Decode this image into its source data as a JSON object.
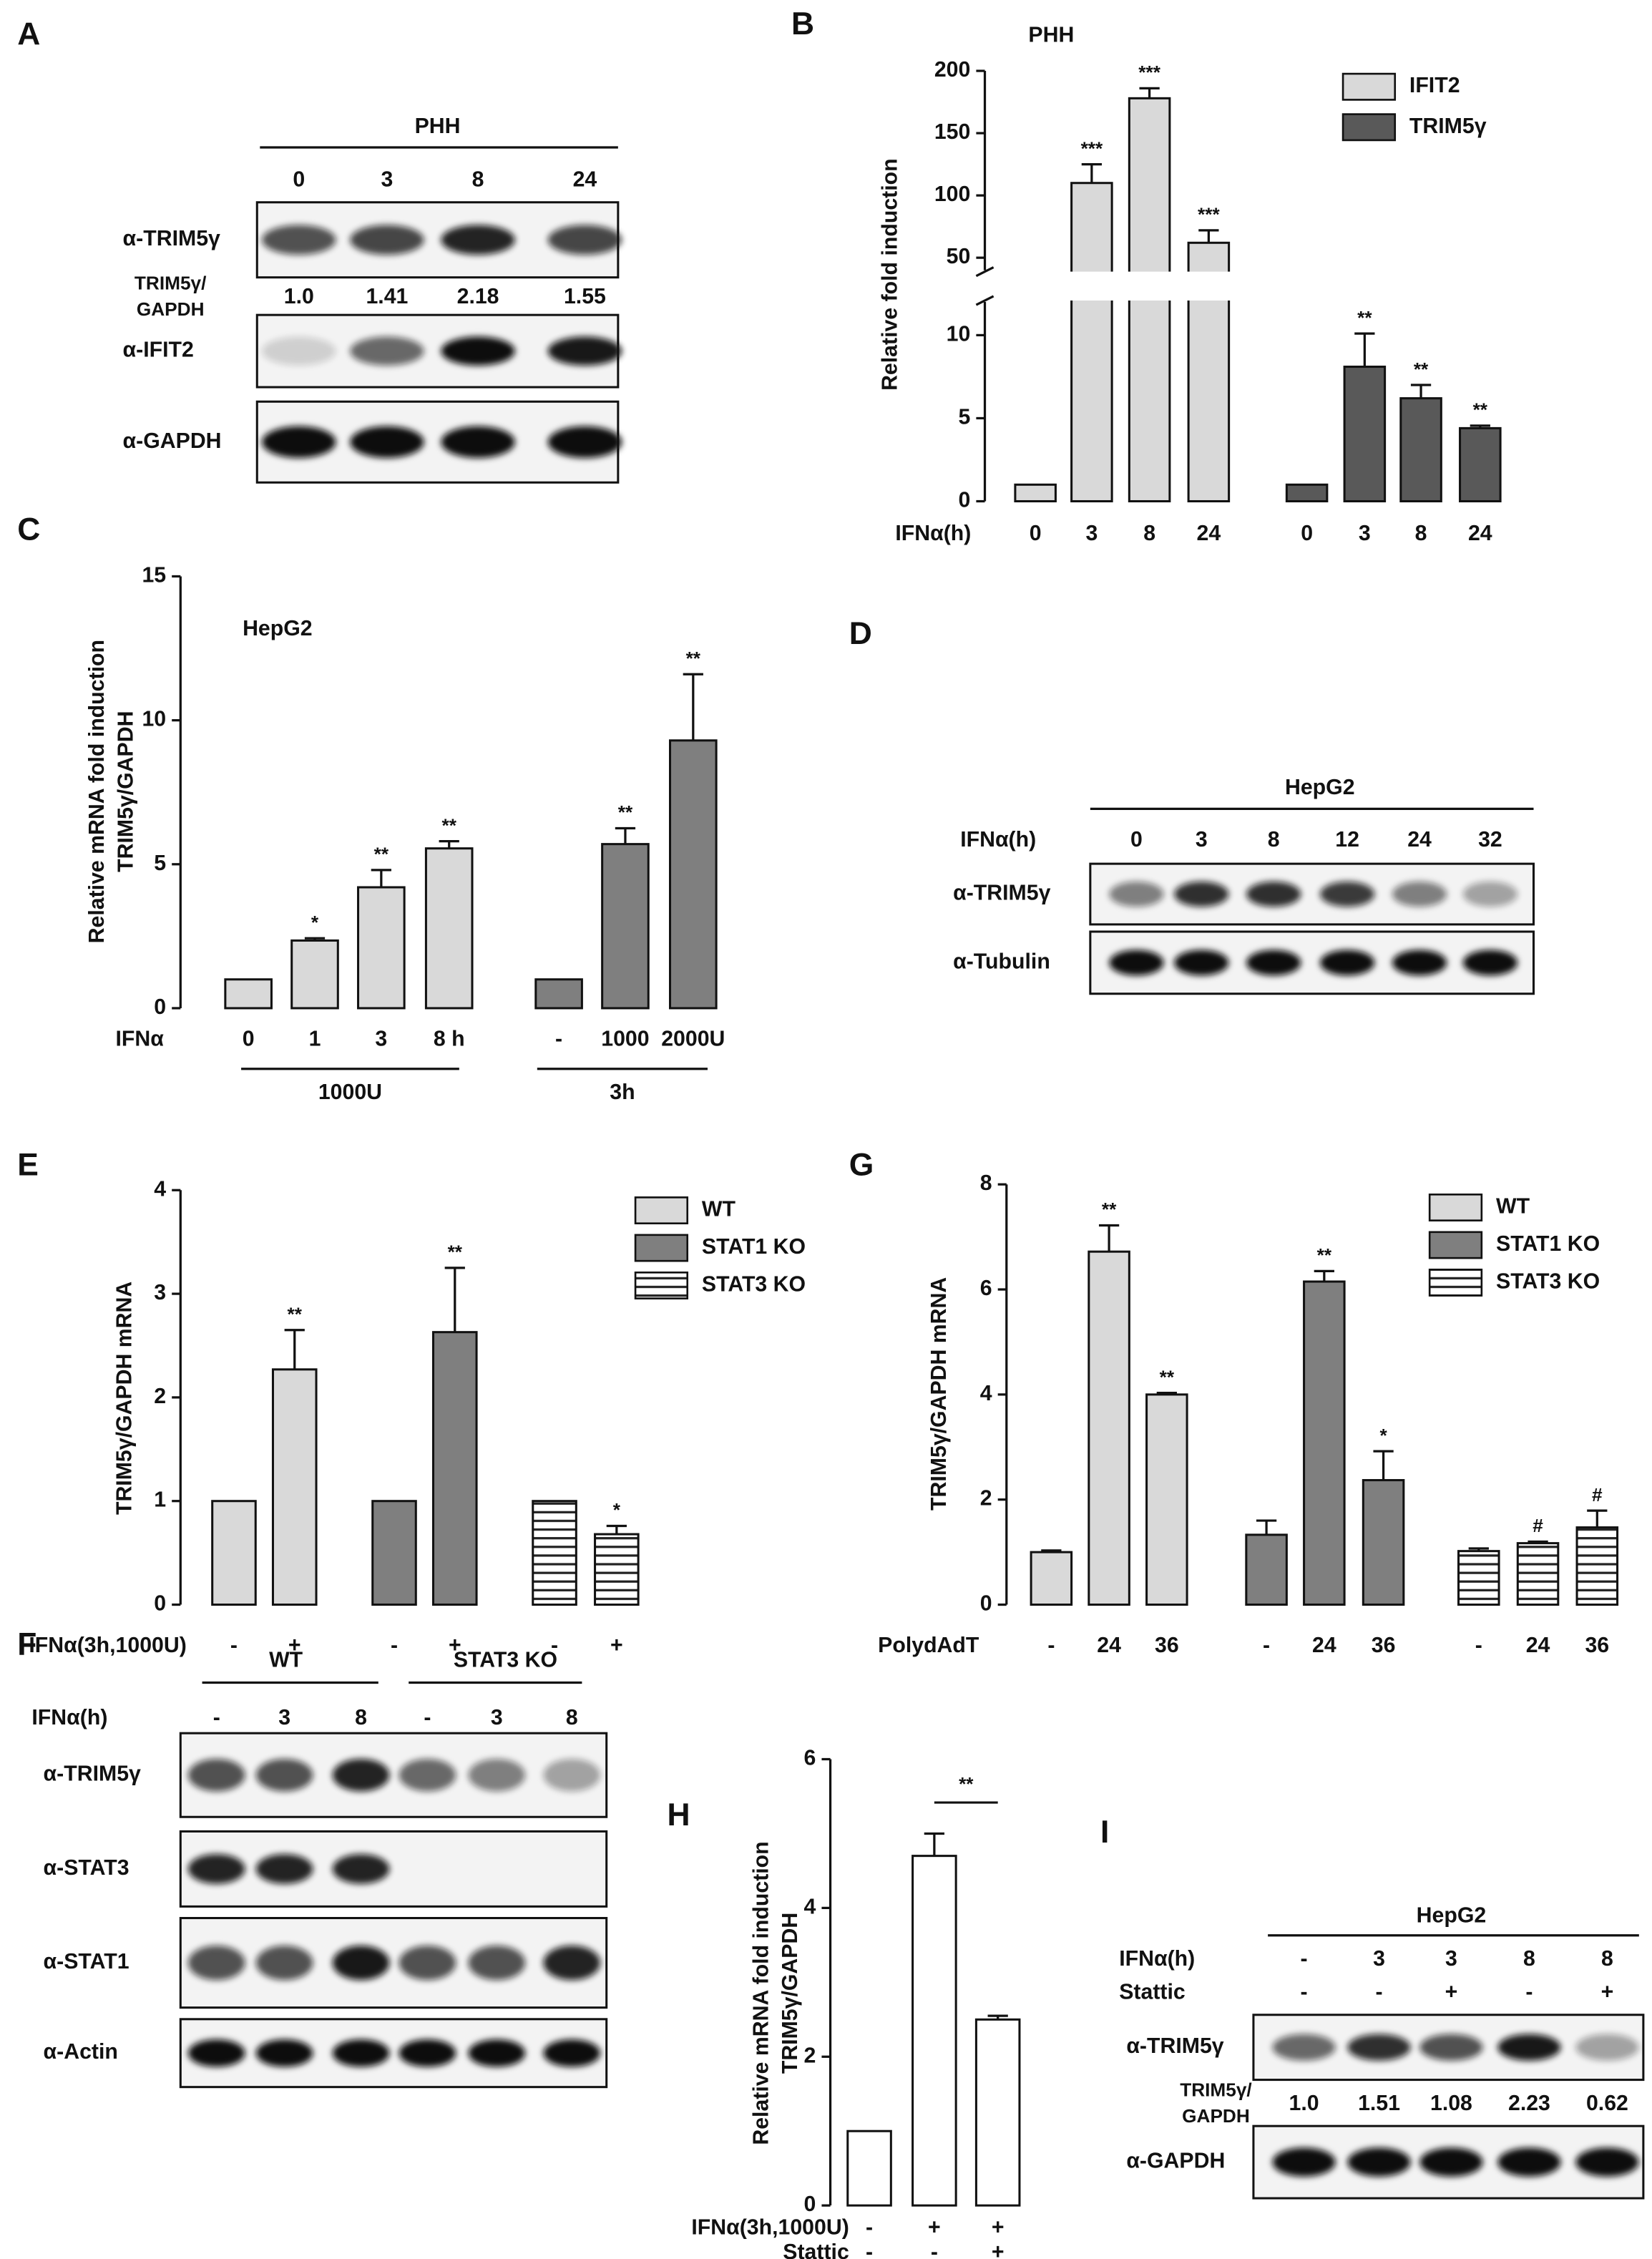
{
  "chart_data": [
    {
      "panel": "B",
      "type": "bar",
      "title": "PHH",
      "y_label": "Relative fold induction",
      "x_label": "IFNα(h)",
      "categories": [
        "0",
        "3",
        "8",
        "24",
        "0",
        "3",
        "8",
        "24"
      ],
      "series": [
        {
          "name": "IFIT2",
          "color": "#d9d9d9",
          "values": [
            1,
            110,
            178,
            62,
            null,
            null,
            null,
            null
          ],
          "errors": [
            null,
            15,
            8,
            10,
            null,
            null,
            null,
            null
          ],
          "stars": [
            null,
            "***",
            "***",
            "***",
            null,
            null,
            null,
            null
          ]
        },
        {
          "name": "TRIM5γ",
          "color": "#595959",
          "values": [
            null,
            null,
            null,
            null,
            1,
            8.1,
            6.2,
            4.4
          ],
          "errors": [
            null,
            null,
            null,
            null,
            null,
            2,
            0.8,
            0.15
          ],
          "stars": [
            null,
            null,
            null,
            null,
            null,
            "**",
            "**",
            "**"
          ]
        }
      ],
      "ylim": [
        0,
        200
      ],
      "axis_break": [
        12,
        40
      ],
      "yticks": [
        0,
        5,
        10,
        50,
        100,
        150,
        200
      ],
      "legend": "top-right"
    },
    {
      "panel": "C",
      "type": "bar",
      "title": "HepG2",
      "y_label": [
        "Relative mRNA fold induction",
        "TRIM5γ/GAPDH"
      ],
      "x_label": "IFNα",
      "categories": [
        "0",
        "1",
        "3",
        "8 h",
        "-",
        "1000",
        "2000U"
      ],
      "groups": [
        "1000U",
        "3h"
      ],
      "series": [
        {
          "color": "#d9d9d9",
          "values": [
            1,
            2.35,
            4.2,
            5.55,
            null,
            null,
            null
          ],
          "errors": [
            null,
            0.08,
            0.6,
            0.25,
            null,
            null,
            null
          ],
          "stars": [
            null,
            "*",
            "**",
            "**",
            null,
            null,
            null
          ]
        },
        {
          "color": "#7f7f7f",
          "values": [
            null,
            null,
            null,
            null,
            1,
            5.7,
            9.3
          ],
          "errors": [
            null,
            null,
            null,
            null,
            null,
            0.55,
            2.3
          ],
          "stars": [
            null,
            null,
            null,
            null,
            null,
            "**",
            "**"
          ]
        }
      ],
      "ylim": [
        0,
        15
      ],
      "yticks": [
        0,
        5,
        10,
        15
      ]
    },
    {
      "panel": "E",
      "type": "bar",
      "y_label": "TRIM5γ/GAPDH mRNA",
      "x_label": "IFNα(3h,1000U)",
      "categories": [
        "-",
        "+",
        "-",
        "+",
        "-",
        "+"
      ],
      "series": [
        {
          "name": "WT",
          "color": "#d9d9d9",
          "values": [
            1,
            2.27,
            null,
            null,
            null,
            null
          ],
          "errors": [
            null,
            0.38,
            null,
            null,
            null,
            null
          ],
          "stars": [
            null,
            "**",
            null,
            null,
            null,
            null
          ]
        },
        {
          "name": "STAT1 KO",
          "color": "#7f7f7f",
          "values": [
            null,
            null,
            1,
            2.63,
            null,
            null
          ],
          "errors": [
            null,
            null,
            null,
            0.62,
            null,
            null
          ],
          "stars": [
            null,
            null,
            null,
            "**",
            null,
            null
          ]
        },
        {
          "name": "STAT3 KO",
          "color": "#ffffff",
          "pattern": "horizontal-lines",
          "values": [
            null,
            null,
            null,
            null,
            1,
            0.68
          ],
          "errors": [
            null,
            null,
            null,
            null,
            null,
            0.08
          ],
          "stars": [
            null,
            null,
            null,
            null,
            null,
            "*"
          ]
        }
      ],
      "ylim": [
        0,
        4
      ],
      "yticks": [
        0,
        1,
        2,
        3,
        4
      ],
      "legend": "top-right"
    },
    {
      "panel": "G",
      "type": "bar",
      "y_label": "TRIM5γ/GAPDH mRNA",
      "x_label": "PolydAdT",
      "categories": [
        "-",
        "24",
        "36",
        "-",
        "24",
        "36",
        "-",
        "24",
        "36"
      ],
      "series": [
        {
          "name": "WT",
          "color": "#d9d9d9",
          "values": [
            1.0,
            6.72,
            4.0,
            null,
            null,
            null,
            null,
            null,
            null
          ],
          "errors": [
            0.03,
            0.5,
            0.03,
            null,
            null,
            null,
            null,
            null,
            null
          ],
          "stars": [
            null,
            "**",
            "**",
            null,
            null,
            null,
            null,
            null,
            null
          ]
        },
        {
          "name": "STAT1 KO",
          "color": "#7f7f7f",
          "values": [
            null,
            null,
            null,
            1.33,
            6.15,
            2.37,
            null,
            null,
            null
          ],
          "errors": [
            null,
            null,
            null,
            0.27,
            0.2,
            0.55,
            null,
            null,
            null
          ],
          "stars": [
            null,
            null,
            null,
            null,
            "**",
            "*",
            null,
            null,
            null
          ]
        },
        {
          "name": "STAT3 KO",
          "color": "#ffffff",
          "pattern": "horizontal-lines",
          "values": [
            null,
            null,
            null,
            null,
            null,
            null,
            1.02,
            1.17,
            1.47
          ],
          "errors": [
            null,
            null,
            null,
            null,
            null,
            null,
            0.05,
            0.03,
            0.32
          ],
          "stars": [
            null,
            null,
            null,
            null,
            null,
            null,
            null,
            "#",
            "#"
          ]
        }
      ],
      "ylim": [
        0,
        8
      ],
      "yticks": [
        0,
        2,
        4,
        6,
        8
      ],
      "legend": "top-right"
    },
    {
      "panel": "H",
      "type": "bar",
      "y_label": [
        "Relative mRNA fold induction",
        "TRIM5γ/GAPDH"
      ],
      "x_label": "IFNα(3h,1000U)",
      "categories": [
        "-",
        "+",
        "+"
      ],
      "x_label2": "Stattic",
      "categories2": [
        "-",
        "-",
        "+"
      ],
      "series": [
        {
          "color": "#ffffff",
          "values": [
            1,
            4.7,
            2.5
          ],
          "errors": [
            null,
            0.3,
            0.05
          ]
        }
      ],
      "bracket": "**",
      "ylim": [
        0,
        6
      ],
      "yticks": [
        0,
        2,
        4,
        6
      ]
    }
  ],
  "blots": [
    {
      "panel": "A",
      "headers": [
        "PHH"
      ],
      "lane_rows": [
        {
          "lanes": [
            "0",
            "3",
            "8",
            "24"
          ]
        }
      ],
      "rows": [
        "α-TRIM5γ",
        "α-IFIT2",
        "α-GAPDH"
      ],
      "quant_label": [
        "TRIM5γ/",
        "GAPDH"
      ],
      "quant": [
        "1.0",
        "1.41",
        "2.18",
        "1.55"
      ]
    },
    {
      "panel": "D",
      "headers": [
        "HepG2"
      ],
      "lane_rows": [
        {
          "label": "IFNα(h)",
          "lanes": [
            "0",
            "3",
            "8",
            "12",
            "24",
            "32"
          ]
        }
      ],
      "rows": [
        "α-TRIM5γ",
        "α-Tubulin"
      ]
    },
    {
      "panel": "F",
      "headers": [
        "WT",
        "STAT3 KO"
      ],
      "lane_rows": [
        {
          "label": "IFNα(h)",
          "lanes": [
            "-",
            "3",
            "8",
            "-",
            "3",
            "8"
          ]
        }
      ],
      "rows": [
        "α-TRIM5γ",
        "α-STAT3",
        "α-STAT1",
        "α-Actin"
      ]
    },
    {
      "panel": "I",
      "headers": [
        "HepG2"
      ],
      "lane_rows": [
        {
          "label": "IFNα(h)",
          "lanes": [
            "-",
            "3",
            "3",
            "8",
            "8"
          ]
        },
        {
          "label": "Stattic",
          "lanes": [
            "-",
            "-",
            "+",
            "-",
            "+"
          ]
        }
      ],
      "rows": [
        "α-TRIM5γ",
        "α-GAPDH"
      ],
      "quant_label": [
        "TRIM5γ/",
        "GAPDH"
      ],
      "quant": [
        "1.0",
        "1.51",
        "1.08",
        "2.23",
        "0.62"
      ]
    }
  ]
}
